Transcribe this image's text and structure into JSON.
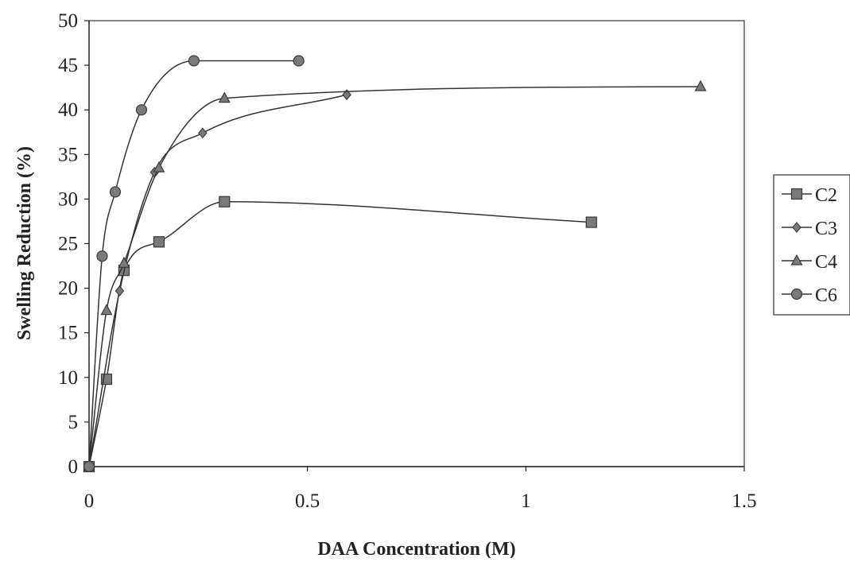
{
  "chart_data": {
    "type": "line",
    "title": "",
    "xlabel": "DAA Concentration (M)",
    "ylabel": "Swelling Reduction (%)",
    "xlim": [
      0,
      1.5
    ],
    "ylim": [
      0,
      50
    ],
    "x_ticks": [
      0,
      0.5,
      1,
      1.5
    ],
    "x_tick_labels": [
      "0",
      "0.5",
      "1",
      "1.5"
    ],
    "y_ticks": [
      0,
      5,
      10,
      15,
      20,
      25,
      30,
      35,
      40,
      45,
      50
    ],
    "y_tick_labels": [
      "0",
      "5",
      "10",
      "15",
      "20",
      "25",
      "30",
      "35",
      "40",
      "45",
      "50"
    ],
    "grid": false,
    "legend_position": "right",
    "smooth": true,
    "series": [
      {
        "name": "C2",
        "marker": "square",
        "x": [
          0,
          0.04,
          0.08,
          0.16,
          0.31,
          1.15
        ],
        "y": [
          0,
          9.8,
          22,
          25.2,
          29.7,
          27.4
        ]
      },
      {
        "name": "C3",
        "marker": "diamond",
        "x": [
          0,
          0.07,
          0.15,
          0.26,
          0.59
        ],
        "y": [
          0,
          19.7,
          33,
          37.4,
          41.7
        ]
      },
      {
        "name": "C4",
        "marker": "triangle",
        "x": [
          0,
          0.04,
          0.08,
          0.16,
          0.31,
          1.4
        ],
        "y": [
          0,
          17.5,
          22.8,
          33.5,
          41.3,
          42.6
        ]
      },
      {
        "name": "C6",
        "marker": "circle",
        "x": [
          0,
          0.03,
          0.06,
          0.12,
          0.24,
          0.48
        ],
        "y": [
          0,
          23.6,
          30.8,
          40,
          45.5,
          45.5
        ]
      }
    ]
  }
}
